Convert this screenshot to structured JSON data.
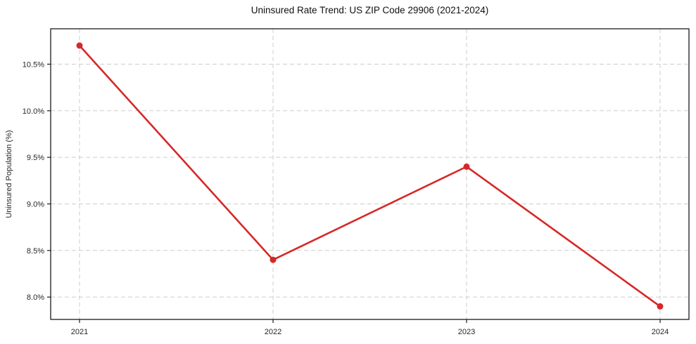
{
  "chart_data": {
    "type": "line",
    "title": "Uninsured Rate Trend: US ZIP Code 29906 (2021-2024)",
    "xlabel": "",
    "ylabel": "Uninsured Population (%)",
    "categories": [
      "2021",
      "2022",
      "2023",
      "2024"
    ],
    "values": [
      10.7,
      8.4,
      9.4,
      7.9
    ],
    "y_ticks": [
      8.0,
      8.5,
      9.0,
      9.5,
      10.0,
      10.5
    ],
    "y_tick_labels": [
      "8.0%",
      "8.5%",
      "9.0%",
      "9.5%",
      "10.0%",
      "10.5%"
    ],
    "ylim": [
      7.76,
      10.88
    ],
    "grid": true,
    "grid_style": "dashed",
    "legend_position": "none",
    "colors": {
      "line": "#d62828",
      "grid": "#cdcdcd",
      "axis": "#1a1a1a",
      "text": "#262626"
    }
  }
}
